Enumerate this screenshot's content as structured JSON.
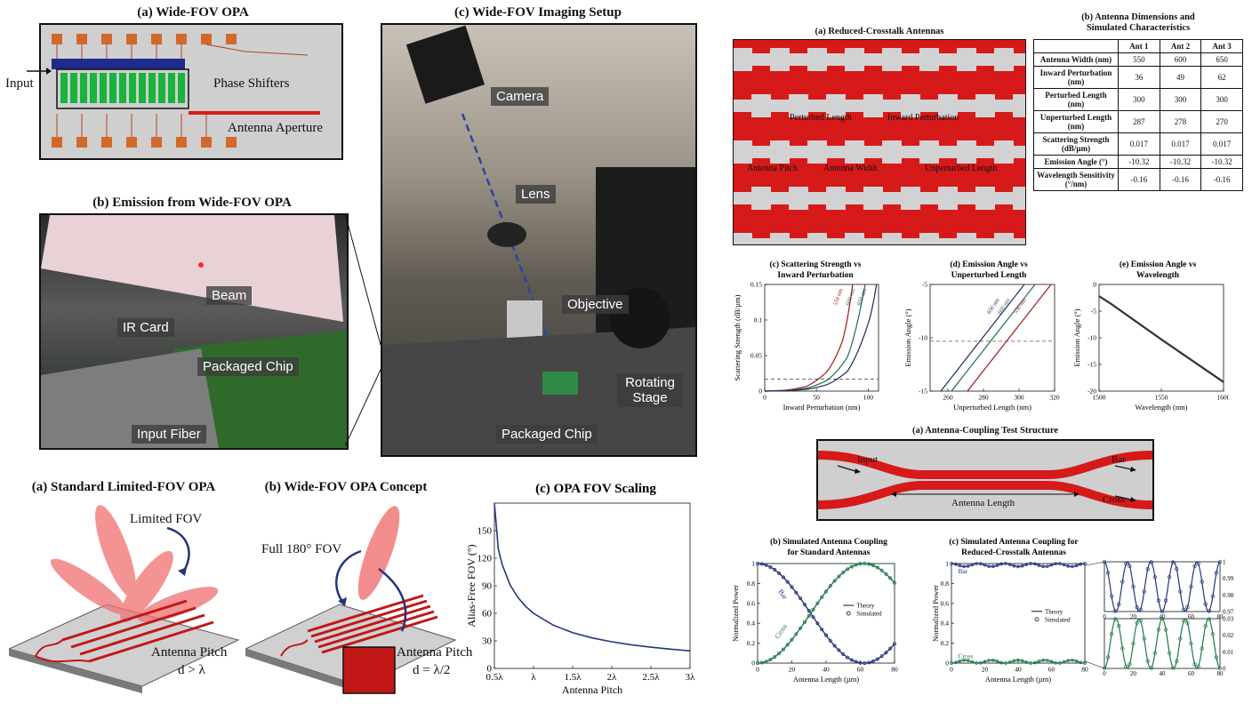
{
  "opa_layout": {
    "title": "(a) Wide-FOV OPA",
    "labels": {
      "input": "Input",
      "phase_shifters": "Phase Shifters",
      "antenna_aperture": "Antenna Aperture"
    }
  },
  "emission": {
    "title": "(b) Emission from Wide-FOV OPA",
    "tags": {
      "beam": "Beam",
      "ir_card": "IR Card",
      "packaged_chip": "Packaged Chip",
      "input_fiber": "Input Fiber"
    }
  },
  "imaging": {
    "title": "(c) Wide-FOV Imaging Setup",
    "tags": {
      "camera": "Camera",
      "lens": "Lens",
      "objective": "Objective",
      "rotating_stage": "Rotating Stage",
      "packaged_chip": "Packaged Chip"
    }
  },
  "standard_opa": {
    "title": "(a) Standard Limited-FOV OPA",
    "labels": {
      "fov": "Limited FOV",
      "pitch": "Antenna Pitch",
      "pitch_rel": "d > λ"
    }
  },
  "wide_opa": {
    "title": "(b) Wide-FOV OPA Concept",
    "labels": {
      "fov": "Full 180° FOV",
      "pitch": "Antenna Pitch",
      "pitch_rel": "d = λ/2"
    }
  },
  "reduced_crosstalk": {
    "title": "(a) Reduced-Crosstalk Antennas",
    "labels": {
      "perturbed_length": "Perturbed Length",
      "inward_perturbation": "Inward Perturbation",
      "antenna_pitch": "Antenna Pitch",
      "antenna_width": "Antenna Width",
      "unperturbed_length": "Unperturbed Length"
    }
  },
  "dimensions_table": {
    "title_line1": "(b) Antenna Dimensions and",
    "title_line2": "Simulated Characteristics",
    "columns": [
      "Ant 1",
      "Ant 2",
      "Ant 3"
    ],
    "rows": [
      {
        "label": "Antenna Width (nm)",
        "values": [
          "550",
          "600",
          "650"
        ]
      },
      {
        "label": "Inward Perturbation (nm)",
        "values": [
          "36",
          "49",
          "62"
        ]
      },
      {
        "label": "Perturbed Length (nm)",
        "values": [
          "300",
          "300",
          "300"
        ]
      },
      {
        "label": "Unperturbed Length (nm)",
        "values": [
          "287",
          "278",
          "270"
        ]
      },
      {
        "label": "Scattering Strength (dB/µm)",
        "values": [
          "0.017",
          "0.017",
          "0.017"
        ]
      },
      {
        "label": "Emission Angle (°)",
        "values": [
          "-10.32",
          "-10.32",
          "-10.32"
        ]
      },
      {
        "label": "Wavelength Sensitivity (°/nm)",
        "values": [
          "-0.16",
          "-0.16",
          "-0.16"
        ]
      }
    ]
  },
  "coupling_structure": {
    "title": "(a) Antenna-Coupling Test Structure",
    "labels": {
      "input": "Input",
      "bar": "Bar",
      "cross": "Cross",
      "antenna_length": "Antenna Length"
    }
  },
  "chart_data": [
    {
      "id": "fov_scaling",
      "type": "line",
      "title": "(c) OPA FOV Scaling",
      "xlabel": "Antenna Pitch",
      "ylabel": "Alias-Free FOV (°)",
      "xlim": [
        0.5,
        3
      ],
      "ylim": [
        0,
        180
      ],
      "xticks": [
        0.5,
        1,
        1.5,
        2,
        2.5,
        3
      ],
      "xticklabels": [
        "0.5λ",
        "λ",
        "1.5λ",
        "2λ",
        "2.5λ",
        "3λ"
      ],
      "yticks": [
        0,
        30,
        60,
        90,
        120,
        150
      ],
      "yticklabels": [
        "0",
        "30",
        "60",
        "90",
        "120",
        "150"
      ],
      "series": [
        {
          "color": "#24357a",
          "x": [
            0.5,
            0.55,
            0.6,
            0.7,
            0.8,
            0.9,
            1.0,
            1.25,
            1.5,
            1.75,
            2.0,
            2.25,
            2.5,
            2.75,
            3.0
          ],
          "y": [
            180,
            130,
            112.9,
            91.0,
            77.4,
            67.5,
            60.0,
            47.2,
            38.9,
            33.2,
            29.0,
            25.7,
            23.1,
            21.0,
            19.2
          ]
        }
      ]
    },
    {
      "id": "scattering_vs_perturbation",
      "type": "line",
      "title_line1": "(c) Scattering Strength vs",
      "title_line2": "Inward Perturbation",
      "xlabel": "Inward Perturbation (nm)",
      "ylabel": "Scattering Strength (dB/µm)",
      "xlim": [
        0,
        110
      ],
      "ylim": [
        0,
        0.15
      ],
      "xticks": [
        0,
        50,
        100
      ],
      "xticklabels": [
        "0",
        "50",
        "100"
      ],
      "yticks": [
        0,
        0.05,
        0.1,
        0.15
      ],
      "yticklabels": [
        "0",
        "0.05",
        "0.1",
        "0.15"
      ],
      "reference_line": 0.017,
      "series": [
        {
          "name": "550 nm",
          "color": "#a01818",
          "x": [
            0,
            20,
            40,
            60,
            75,
            85
          ],
          "y": [
            0,
            0.0012,
            0.0065,
            0.027,
            0.07,
            0.15
          ]
        },
        {
          "name": "600 nm",
          "color": "#1d6e50",
          "x": [
            0,
            20,
            40,
            60,
            80,
            97
          ],
          "y": [
            0,
            0.0008,
            0.004,
            0.015,
            0.048,
            0.15
          ]
        },
        {
          "name": "650 nm",
          "color": "#1e2a5a",
          "x": [
            0,
            20,
            40,
            60,
            80,
            100,
            108
          ],
          "y": [
            0,
            0.0005,
            0.0025,
            0.009,
            0.028,
            0.095,
            0.15
          ]
        }
      ]
    },
    {
      "id": "angle_vs_length",
      "type": "line",
      "title_line1": "(d) Emission Angle vs",
      "title_line2": "Unperturbed Length",
      "xlabel": "Unperturbed Length (nm)",
      "ylabel": "Emission Angle (°)",
      "xlim": [
        250,
        320
      ],
      "ylim": [
        -15,
        -5
      ],
      "xticks": [
        260,
        280,
        300,
        320
      ],
      "xticklabels": [
        "260",
        "280",
        "300",
        "320"
      ],
      "yticks": [
        -5,
        -10,
        -15
      ],
      "yticklabels": [
        "-5",
        "-10",
        "-15"
      ],
      "reference_line": -10.32,
      "series": [
        {
          "name": "650 nm",
          "color": "#1e2a5a",
          "x": [
            256,
            303
          ],
          "y": [
            -15,
            -5
          ]
        },
        {
          "name": "600 nm",
          "color": "#1d6e50",
          "x": [
            262,
            309
          ],
          "y": [
            -15,
            -5
          ]
        },
        {
          "name": "550 nm",
          "color": "#a01818",
          "x": [
            271,
            318
          ],
          "y": [
            -15,
            -5
          ]
        }
      ]
    },
    {
      "id": "angle_vs_wavelength",
      "type": "line",
      "title_line1": "(e) Emission Angle vs",
      "title_line2": "Wavelength",
      "xlabel": "Wavelength (nm)",
      "ylabel": "Emission Angle (°)",
      "xlim": [
        1500,
        1600
      ],
      "ylim": [
        -20,
        0
      ],
      "xticks": [
        1500,
        1550,
        1600
      ],
      "xticklabels": [
        "1500",
        "1550",
        "1600"
      ],
      "yticks": [
        0,
        -5,
        -10,
        -15,
        -20
      ],
      "yticklabels": [
        "0",
        "-5",
        "-10",
        "-15",
        "-20"
      ],
      "series": [
        {
          "color": "#333333",
          "x": [
            1500,
            1510,
            1550,
            1600
          ],
          "y": [
            -2.2,
            -3.7,
            -10.3,
            -18.3
          ]
        }
      ]
    },
    {
      "id": "coupling_standard",
      "type": "line",
      "title_line1": "(b) Simulated Antenna Coupling",
      "title_line2": "for Standard Antennas",
      "xlabel": "Antenna Length (µm)",
      "ylabel": "Normalized Power",
      "xlim": [
        0,
        80
      ],
      "ylim": [
        0,
        1
      ],
      "xticks": [
        0,
        20,
        40,
        60,
        80
      ],
      "xticklabels": [
        "0",
        "20",
        "40",
        "60",
        "80"
      ],
      "yticks": [
        0,
        0.2,
        0.4,
        0.6,
        0.8,
        1
      ],
      "yticklabels": [
        "0",
        "0.2",
        "0.4",
        "0.6",
        "0.8",
        "1"
      ],
      "legend": [
        "Theory",
        "Simulated"
      ],
      "curve_labels": [
        "Bar",
        "Cross"
      ],
      "coupling_length_um": 62,
      "series": [
        {
          "name": "Bar",
          "color": "#24357a",
          "fn": "cos2"
        },
        {
          "name": "Cross",
          "color": "#1f7a4a",
          "fn": "sin2"
        }
      ]
    },
    {
      "id": "coupling_reduced",
      "type": "line",
      "title_line1": "(c) Simulated Antenna Coupling for",
      "title_line2": "Reduced-Crosstalk Antennas",
      "xlabel": "Antenna Length (µm)",
      "ylabel": "Normalized Power",
      "xlim": [
        0,
        80
      ],
      "ylim": [
        0,
        1
      ],
      "xticks": [
        0,
        20,
        40,
        60,
        80
      ],
      "xticklabels": [
        "0",
        "20",
        "40",
        "60",
        "80"
      ],
      "yticks": [
        0,
        0.2,
        0.4,
        0.6,
        0.8,
        1
      ],
      "yticklabels": [
        "0",
        "0.2",
        "0.4",
        "0.6",
        "0.8",
        "1"
      ],
      "legend": [
        "Theory",
        "Simulated"
      ],
      "curve_labels": [
        "Bar",
        "Cross"
      ],
      "oscillation_period_um": 16,
      "cross_peak": 0.03,
      "insets": [
        {
          "name": "Bar",
          "yticks": [
            0.97,
            0.98,
            0.99,
            1
          ],
          "yticklabels": [
            "0.97",
            "0.98",
            "0.99",
            "1"
          ],
          "xticklabels": [
            "0",
            "20",
            "40",
            "60",
            "80"
          ]
        },
        {
          "name": "Cross",
          "yticks": [
            0,
            0.01,
            0.02,
            0.03
          ],
          "yticklabels": [
            "0",
            "0.01",
            "0.02",
            "0.03"
          ],
          "xticklabels": [
            "0",
            "20",
            "40",
            "60",
            "80"
          ]
        }
      ]
    }
  ],
  "colors": {
    "waveguide_red": "#d61a1a",
    "navy": "#24357a",
    "green": "#1f7a4a"
  }
}
